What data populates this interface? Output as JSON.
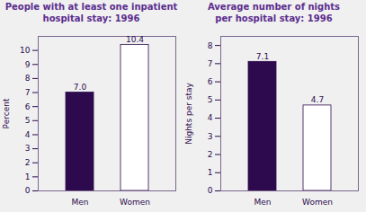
{
  "chart_data": [
    {
      "type": "bar",
      "title": "People with at least one inpatient\nhospital stay: 1996",
      "categories": [
        "Men",
        "Women"
      ],
      "values": [
        7.0,
        10.4
      ],
      "value_labels": [
        "7.0",
        "10.4"
      ],
      "ylabel": "Percent",
      "ylim": [
        0,
        11
      ],
      "yticks": [
        0,
        1,
        2,
        3,
        4,
        5,
        6,
        7,
        8,
        9,
        10
      ],
      "colors": [
        "#2d0a4e",
        "#ffffff"
      ],
      "data_labels": true
    },
    {
      "type": "bar",
      "title": "Average number of nights\nper hospital stay: 1996",
      "categories": [
        "Men",
        "Women"
      ],
      "values": [
        7.1,
        4.7
      ],
      "value_labels": [
        "7.1",
        "4.7"
      ],
      "ylabel": "Nights per stay",
      "ylim": [
        0,
        8.5
      ],
      "yticks": [
        0,
        1,
        2,
        3,
        4,
        5,
        6,
        7,
        8
      ],
      "colors": [
        "#2d0a4e",
        "#ffffff"
      ],
      "data_labels": true
    }
  ]
}
